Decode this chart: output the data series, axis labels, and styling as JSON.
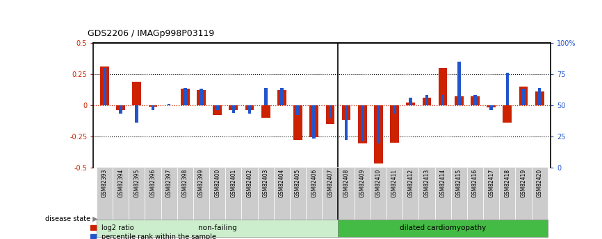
{
  "title": "GDS2206 / IMAGp998P03119",
  "samples": [
    "GSM82393",
    "GSM82394",
    "GSM82395",
    "GSM82396",
    "GSM82397",
    "GSM82398",
    "GSM82399",
    "GSM82400",
    "GSM82401",
    "GSM82402",
    "GSM82403",
    "GSM82404",
    "GSM82405",
    "GSM82406",
    "GSM82407",
    "GSM82408",
    "GSM82409",
    "GSM82410",
    "GSM82411",
    "GSM82412",
    "GSM82413",
    "GSM82414",
    "GSM82415",
    "GSM82416",
    "GSM82417",
    "GSM82418",
    "GSM82419",
    "GSM82420"
  ],
  "log2_ratio": [
    0.31,
    -0.04,
    0.19,
    -0.01,
    0.0,
    0.13,
    0.12,
    -0.08,
    -0.04,
    -0.04,
    -0.1,
    0.12,
    -0.28,
    -0.26,
    -0.15,
    -0.12,
    -0.31,
    -0.47,
    -0.3,
    0.02,
    0.06,
    0.3,
    0.07,
    0.07,
    -0.02,
    -0.14,
    0.15,
    0.11
  ],
  "percentile_scaled": [
    0.3,
    -0.07,
    -0.14,
    -0.04,
    0.01,
    0.14,
    0.13,
    -0.04,
    -0.06,
    -0.07,
    0.14,
    0.14,
    -0.08,
    -0.27,
    -0.1,
    -0.28,
    -0.29,
    -0.31,
    -0.07,
    0.06,
    0.08,
    0.08,
    0.35,
    0.08,
    -0.04,
    0.26,
    0.13,
    0.14
  ],
  "non_failing_count": 15,
  "ylim": [
    -0.5,
    0.5
  ],
  "red_color": "#cc2200",
  "blue_color": "#2255cc",
  "non_failing_color": "#cceecc",
  "cardiomyopathy_color": "#44bb44",
  "tick_bg_color": "#cccccc",
  "disease_label_nf": "non-failing",
  "disease_label_dc": "dilated cardiomyopathy",
  "legend_red": "log2 ratio",
  "legend_blue": "percentile rank within the sample"
}
